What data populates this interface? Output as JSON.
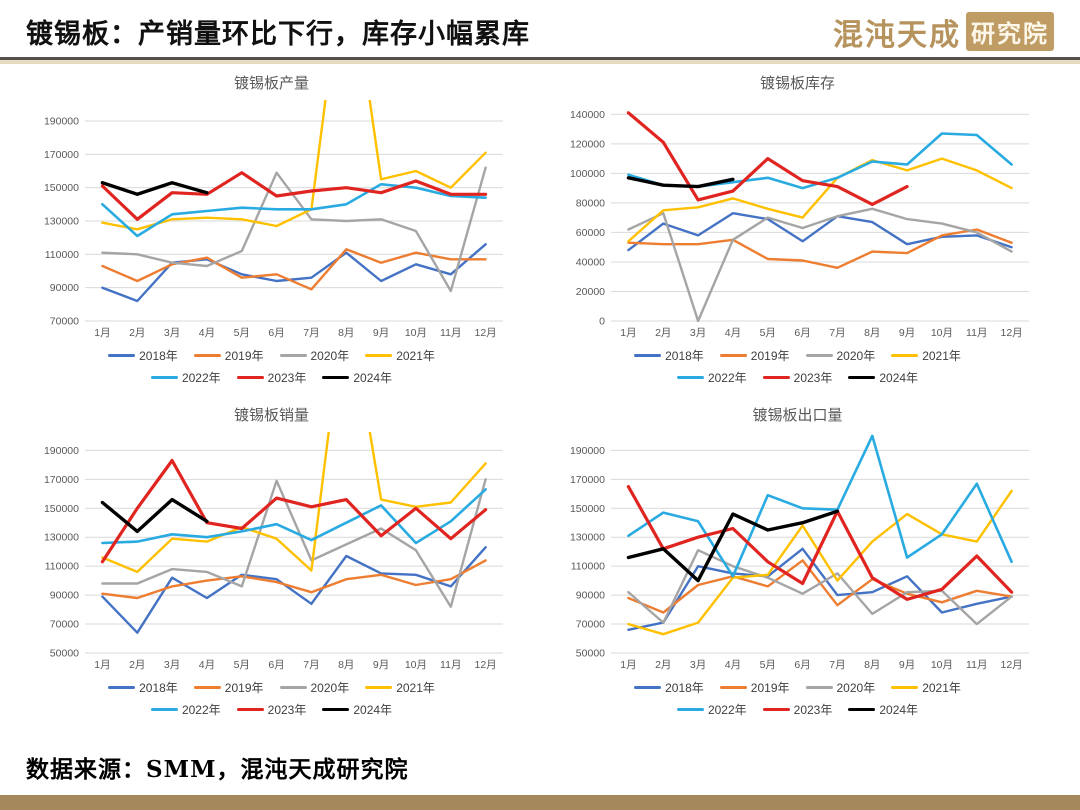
{
  "header": {
    "title": "镀锡板：产销量环比下行，库存小幅累库",
    "logo_text": "混沌天成",
    "logo_badge": "研究院",
    "accent_color": "#b6935d"
  },
  "footer": {
    "source": "数据来源：SMM，混沌天成研究院"
  },
  "legend_rows": [
    [
      "2018年",
      "2019年",
      "2020年",
      "2021年"
    ],
    [
      "2022年",
      "2023年",
      "2024年"
    ]
  ],
  "series_style": {
    "2018年": {
      "color": "#4472C4",
      "width": 2.4
    },
    "2019年": {
      "color": "#ED7D31",
      "width": 2.4
    },
    "2020年": {
      "color": "#A5A5A5",
      "width": 2.4
    },
    "2021年": {
      "color": "#FFC000",
      "width": 2.4
    },
    "2022年": {
      "color": "#29ABE2",
      "width": 2.6
    },
    "2023年": {
      "color": "#E02420",
      "width": 3.2
    },
    "2024年": {
      "color": "#000000",
      "width": 3.4
    }
  },
  "chart_data": [
    {
      "type": "line",
      "title": "镀锡板产量",
      "categories": [
        "1月",
        "2月",
        "3月",
        "4月",
        "5月",
        "6月",
        "7月",
        "8月",
        "9月",
        "10月",
        "11月",
        "12月"
      ],
      "ylim": [
        70000,
        202000
      ],
      "yticks": [
        70000,
        90000,
        110000,
        130000,
        150000,
        170000,
        190000
      ],
      "grid": true,
      "legend_position": "bottom",
      "series": [
        {
          "name": "2018年",
          "values": [
            90000,
            82000,
            105000,
            107000,
            98000,
            94000,
            96000,
            111000,
            94000,
            104000,
            98000,
            116000
          ]
        },
        {
          "name": "2019年",
          "values": [
            103000,
            94000,
            104000,
            108000,
            96000,
            98000,
            89000,
            113000,
            105000,
            111000,
            107000,
            107000
          ]
        },
        {
          "name": "2020年",
          "values": [
            111000,
            110000,
            105000,
            103000,
            112000,
            159000,
            131000,
            130000,
            131000,
            124000,
            88000,
            162000
          ]
        },
        {
          "name": "2021年",
          "values": [
            129000,
            125000,
            131000,
            132000,
            131000,
            127000,
            137000,
            300000,
            155000,
            160000,
            150000,
            171000
          ]
        },
        {
          "name": "2022年",
          "values": [
            140000,
            121000,
            134000,
            136000,
            138000,
            137000,
            137000,
            140000,
            152000,
            150000,
            145000,
            144000
          ]
        },
        {
          "name": "2023年",
          "values": [
            151000,
            131000,
            147000,
            146000,
            159000,
            145000,
            148000,
            150000,
            147000,
            154000,
            146000,
            146000
          ]
        },
        {
          "name": "2024年",
          "values": [
            153000,
            146000,
            153000,
            147000
          ]
        }
      ]
    },
    {
      "type": "line",
      "title": "镀锡板库存",
      "categories": [
        "1月",
        "2月",
        "3月",
        "4月",
        "5月",
        "6月",
        "7月",
        "8月",
        "9月",
        "10月",
        "11月",
        "12月"
      ],
      "ylim": [
        0,
        149000
      ],
      "yticks": [
        0,
        20000,
        40000,
        60000,
        80000,
        100000,
        120000,
        140000
      ],
      "grid": true,
      "legend_position": "bottom",
      "series": [
        {
          "name": "2018年",
          "values": [
            48000,
            66000,
            58000,
            73000,
            69000,
            54000,
            71000,
            67000,
            52000,
            57000,
            58000,
            50000
          ]
        },
        {
          "name": "2019年",
          "values": [
            53000,
            52000,
            52000,
            55000,
            42000,
            41000,
            36000,
            47000,
            46000,
            58000,
            62000,
            53000
          ]
        },
        {
          "name": "2020年",
          "values": [
            62000,
            73000,
            0,
            55000,
            70000,
            63000,
            71000,
            76000,
            69000,
            66000,
            60000,
            47000
          ]
        },
        {
          "name": "2021年",
          "values": [
            54000,
            75000,
            77000,
            83000,
            76000,
            70000,
            97000,
            109000,
            102000,
            110000,
            102000,
            90000
          ]
        },
        {
          "name": "2022年",
          "values": [
            99000,
            92000,
            91000,
            94000,
            97000,
            90000,
            97000,
            108000,
            106000,
            127000,
            126000,
            106000
          ]
        },
        {
          "name": "2023年",
          "values": [
            141000,
            121000,
            82000,
            88000,
            110000,
            95000,
            91000,
            79000,
            91000
          ]
        },
        {
          "name": "2024年",
          "values": [
            97000,
            92000,
            91000,
            96000
          ]
        }
      ]
    },
    {
      "type": "line",
      "title": "镀锡板销量",
      "categories": [
        "1月",
        "2月",
        "3月",
        "4月",
        "5月",
        "6月",
        "7月",
        "8月",
        "9月",
        "10月",
        "11月",
        "12月"
      ],
      "ylim": [
        50000,
        202000
      ],
      "yticks": [
        50000,
        70000,
        90000,
        110000,
        130000,
        150000,
        170000,
        190000
      ],
      "grid": true,
      "legend_position": "bottom",
      "series": [
        {
          "name": "2018年",
          "values": [
            89000,
            64000,
            102000,
            88000,
            104000,
            101000,
            84000,
            117000,
            105000,
            104000,
            96000,
            123000
          ]
        },
        {
          "name": "2019年",
          "values": [
            91000,
            88000,
            96000,
            100000,
            103000,
            99000,
            92000,
            101000,
            104000,
            97000,
            101000,
            114000
          ]
        },
        {
          "name": "2020年",
          "values": [
            98000,
            98000,
            108000,
            106000,
            96000,
            169000,
            114000,
            125000,
            136000,
            121000,
            82000,
            170000
          ]
        },
        {
          "name": "2021年",
          "values": [
            116000,
            106000,
            129000,
            127000,
            137000,
            129000,
            107000,
            300000,
            156000,
            151000,
            154000,
            181000
          ]
        },
        {
          "name": "2022年",
          "values": [
            126000,
            127000,
            132000,
            130000,
            134000,
            139000,
            128000,
            140000,
            152000,
            126000,
            141000,
            163000
          ]
        },
        {
          "name": "2023年",
          "values": [
            113000,
            150000,
            183000,
            140000,
            136000,
            157000,
            151000,
            156000,
            131000,
            150000,
            129000,
            149000
          ]
        },
        {
          "name": "2024年",
          "values": [
            154000,
            134000,
            156000,
            141000
          ]
        }
      ]
    },
    {
      "type": "line",
      "title": "镀锡板出口量",
      "categories": [
        "1月",
        "2月",
        "3月",
        "4月",
        "5月",
        "6月",
        "7月",
        "8月",
        "9月",
        "10月",
        "11月",
        "12月"
      ],
      "ylim": [
        50000,
        202000
      ],
      "yticks": [
        50000,
        70000,
        90000,
        110000,
        130000,
        150000,
        170000,
        190000
      ],
      "grid": true,
      "legend_position": "bottom",
      "series": [
        {
          "name": "2018年",
          "values": [
            66000,
            71000,
            110000,
            105000,
            103000,
            122000,
            90000,
            92000,
            103000,
            78000,
            84000,
            89000
          ]
        },
        {
          "name": "2019年",
          "values": [
            88000,
            78000,
            97000,
            103000,
            96000,
            114000,
            83000,
            101000,
            91000,
            85000,
            93000,
            89000
          ]
        },
        {
          "name": "2020年",
          "values": [
            92000,
            71000,
            121000,
            110000,
            102000,
            91000,
            105000,
            77000,
            92000,
            93000,
            70000,
            89000
          ]
        },
        {
          "name": "2021年",
          "values": [
            70000,
            63000,
            71000,
            102000,
            104000,
            138000,
            100000,
            127000,
            146000,
            132000,
            127000,
            162000
          ]
        },
        {
          "name": "2022年",
          "values": [
            131000,
            147000,
            141000,
            103000,
            159000,
            150000,
            149000,
            200000,
            116000,
            132000,
            167000,
            113000
          ]
        },
        {
          "name": "2023年",
          "values": [
            165000,
            122000,
            130000,
            136000,
            113000,
            98000,
            148000,
            102000,
            87000,
            94000,
            117000,
            92000
          ]
        },
        {
          "name": "2024年",
          "values": [
            116000,
            122000,
            100000,
            146000,
            135000,
            140000,
            148000
          ]
        }
      ]
    }
  ]
}
